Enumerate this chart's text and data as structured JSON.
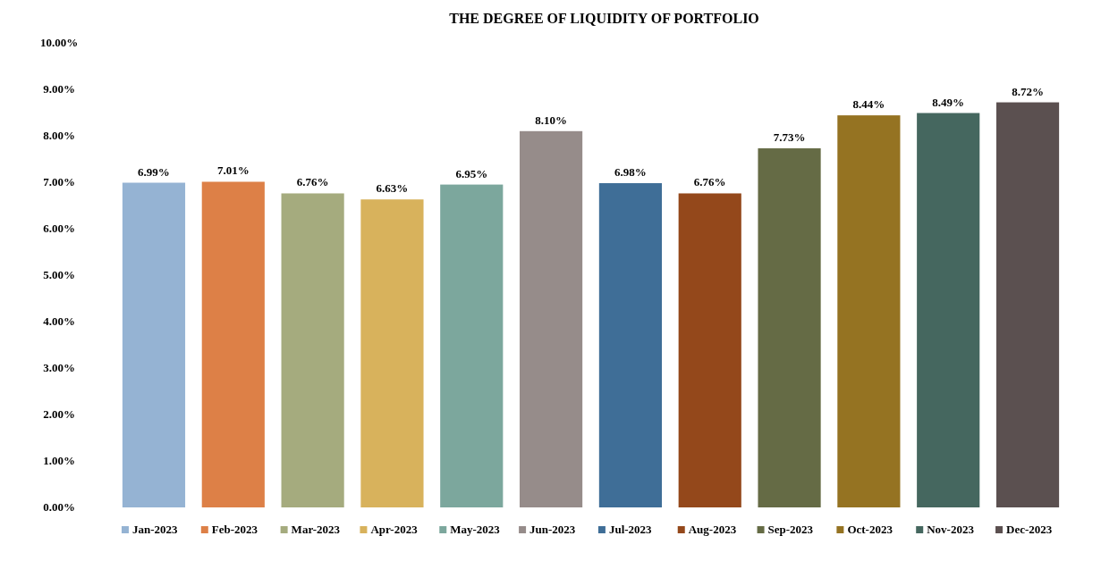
{
  "chart_data": {
    "type": "bar",
    "title": "THE DEGREE OF LIQUIDITY OF PORTFOLIO",
    "categories": [
      "Jan-2023",
      "Feb-2023",
      "Mar-2023",
      "Apr-2023",
      "May-2023",
      "Jun-2023",
      "Jul-2023",
      "Aug-2023",
      "Sep-2023",
      "Oct-2023",
      "Nov-2023",
      "Dec-2023"
    ],
    "values": [
      6.99,
      7.01,
      6.76,
      6.63,
      6.95,
      8.1,
      6.98,
      6.76,
      7.73,
      8.44,
      8.49,
      8.72
    ],
    "value_labels": [
      "6.99%",
      "7.01%",
      "6.76%",
      "6.63%",
      "6.95%",
      "8.10%",
      "6.98%",
      "6.76%",
      "7.73%",
      "8.44%",
      "8.49%",
      "8.72%"
    ],
    "colors": [
      "#95b3d3",
      "#dd8047",
      "#a5ab7e",
      "#d8b25c",
      "#7ca79d",
      "#968c8a",
      "#3f6e97",
      "#94481b",
      "#656b45",
      "#957322",
      "#45675f",
      "#5b5050"
    ],
    "ylim": [
      0,
      10
    ],
    "yticks": [
      {
        "value": 0,
        "label": "0.00%"
      },
      {
        "value": 1,
        "label": "1.00%"
      },
      {
        "value": 2,
        "label": "2.00%"
      },
      {
        "value": 3,
        "label": "3.00%"
      },
      {
        "value": 4,
        "label": "4.00%"
      },
      {
        "value": 5,
        "label": "5.00%"
      },
      {
        "value": 6,
        "label": "6.00%"
      },
      {
        "value": 7,
        "label": "7.00%"
      },
      {
        "value": 8,
        "label": "8.00%"
      },
      {
        "value": 9,
        "label": "9.00%"
      },
      {
        "value": 10,
        "label": "10.00%"
      }
    ],
    "grid": false
  }
}
